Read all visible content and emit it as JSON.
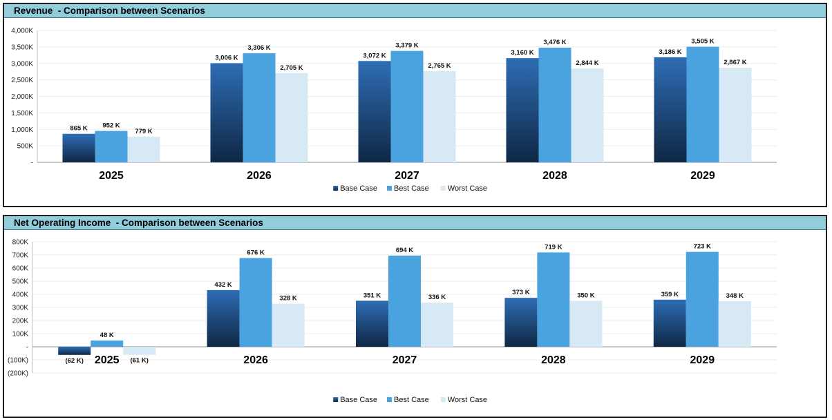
{
  "charts": [
    {
      "title": "Revenue  - Comparison between Scenarios",
      "legend": [
        "Base Case",
        "Best Case",
        "Worst Case"
      ]
    },
    {
      "title": "Net Operating Income  - Comparison between Scenarios",
      "legend": [
        "Base Case",
        "Best Case",
        "Worst Case"
      ]
    }
  ],
  "colors": {
    "base_top": "#2e6db4",
    "base_bottom": "#0f2744",
    "best": "#4aa3df",
    "worst": "#d6e9f4",
    "header_bg": "#92cddc"
  },
  "chart_data": [
    {
      "type": "bar",
      "title": "Revenue  - Comparison between Scenarios",
      "categories": [
        "2025",
        "2026",
        "2027",
        "2028",
        "2029"
      ],
      "series": [
        {
          "name": "Base Case",
          "values": [
            865,
            3006,
            3072,
            3160,
            3186
          ],
          "labels": [
            "865 K",
            "3,006 K",
            "3,072 K",
            "3,160 K",
            "3,186 K"
          ]
        },
        {
          "name": "Best Case",
          "values": [
            952,
            3306,
            3379,
            3476,
            3505
          ],
          "labels": [
            "952 K",
            "3,306 K",
            "3,379 K",
            "3,476 K",
            "3,505 K"
          ]
        },
        {
          "name": "Worst Case",
          "values": [
            779,
            2705,
            2765,
            2844,
            2867
          ],
          "labels": [
            "779 K",
            "2,705 K",
            "2,765 K",
            "2,844 K",
            "2,867 K"
          ]
        }
      ],
      "ylim": [
        0,
        4000
      ],
      "yticks": [
        0,
        500,
        1000,
        1500,
        2000,
        2500,
        3000,
        3500,
        4000
      ],
      "ytick_labels": [
        "-",
        "500K",
        "1,000K",
        "1,500K",
        "2,000K",
        "2,500K",
        "3,000K",
        "3,500K",
        "4,000K"
      ],
      "grid": true,
      "legend_position": "bottom"
    },
    {
      "type": "bar",
      "title": "Net Operating Income  - Comparison between Scenarios",
      "categories": [
        "2025",
        "2026",
        "2027",
        "2028",
        "2029"
      ],
      "series": [
        {
          "name": "Base Case",
          "values": [
            -62,
            432,
            351,
            373,
            359
          ],
          "labels": [
            "(62 K)",
            "432 K",
            "351 K",
            "373 K",
            "359 K"
          ]
        },
        {
          "name": "Best Case",
          "values": [
            48,
            676,
            694,
            719,
            723
          ],
          "labels": [
            "48 K",
            "676 K",
            "694 K",
            "719 K",
            "723 K"
          ]
        },
        {
          "name": "Worst Case",
          "values": [
            -61,
            328,
            336,
            350,
            348
          ],
          "labels": [
            "(61 K)",
            "328 K",
            "336 K",
            "350 K",
            "348 K"
          ]
        }
      ],
      "ylim": [
        -200,
        800
      ],
      "yticks": [
        -200,
        -100,
        0,
        100,
        200,
        300,
        400,
        500,
        600,
        700,
        800
      ],
      "ytick_labels": [
        "(200K)",
        "(100K)",
        "-",
        "100K",
        "200K",
        "300K",
        "400K",
        "500K",
        "600K",
        "700K",
        "800K"
      ],
      "grid": true,
      "legend_position": "bottom"
    }
  ]
}
